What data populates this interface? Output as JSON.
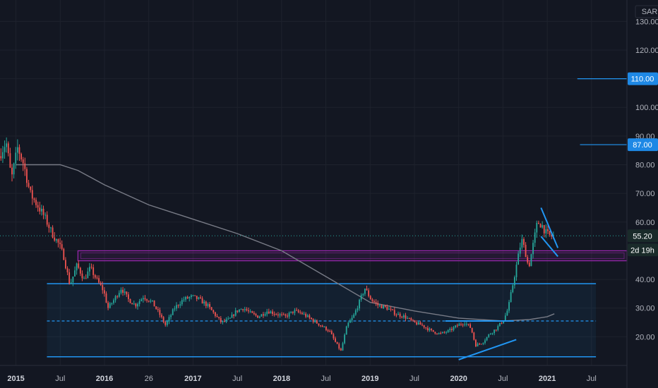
{
  "chart_data": {
    "type": "candlestick",
    "currency": "SAR",
    "y_axis": {
      "ticks": [
        20,
        30,
        40,
        50,
        60,
        70,
        80,
        90,
        100,
        110,
        120,
        130
      ],
      "tick_labels": [
        "20.00",
        "30.00",
        "40.00",
        "50.00",
        "60.00",
        "70.00",
        "80.00",
        "90.00",
        "100.00",
        "110.00",
        "120.00",
        "130.00"
      ],
      "ylim": [
        10,
        135
      ]
    },
    "x_axis": {
      "ticks": [
        {
          "label": "2015",
          "t": 2015.0,
          "bold": true
        },
        {
          "label": "Jul",
          "t": 2015.5,
          "bold": false
        },
        {
          "label": "2016",
          "t": 2016.0,
          "bold": true
        },
        {
          "label": "26",
          "t": 2016.5,
          "bold": false
        },
        {
          "label": "2017",
          "t": 2017.0,
          "bold": true
        },
        {
          "label": "Jul",
          "t": 2017.5,
          "bold": false
        },
        {
          "label": "2018",
          "t": 2018.0,
          "bold": true
        },
        {
          "label": "Jul",
          "t": 2018.5,
          "bold": false
        },
        {
          "label": "2019",
          "t": 2019.0,
          "bold": true
        },
        {
          "label": "Jul",
          "t": 2019.5,
          "bold": false
        },
        {
          "label": "2020",
          "t": 2020.0,
          "bold": true
        },
        {
          "label": "Jul",
          "t": 2020.5,
          "bold": false
        },
        {
          "label": "2021",
          "t": 2021.0,
          "bold": true
        },
        {
          "label": "Jul",
          "t": 2021.5,
          "bold": false
        }
      ],
      "xlim": [
        2014.82,
        2021.9
      ]
    },
    "price_path": [
      [
        2014.82,
        83
      ],
      [
        2014.9,
        88
      ],
      [
        2014.96,
        75
      ],
      [
        2015.03,
        86
      ],
      [
        2015.1,
        80
      ],
      [
        2015.17,
        70
      ],
      [
        2015.25,
        66
      ],
      [
        2015.33,
        62
      ],
      [
        2015.42,
        56
      ],
      [
        2015.5,
        52
      ],
      [
        2015.55,
        48
      ],
      [
        2015.62,
        38
      ],
      [
        2015.7,
        45
      ],
      [
        2015.78,
        40
      ],
      [
        2015.85,
        44
      ],
      [
        2015.92,
        40
      ],
      [
        2016.0,
        36
      ],
      [
        2016.05,
        30
      ],
      [
        2016.12,
        33
      ],
      [
        2016.2,
        37
      ],
      [
        2016.28,
        33
      ],
      [
        2016.36,
        31
      ],
      [
        2016.45,
        34
      ],
      [
        2016.55,
        32
      ],
      [
        2016.63,
        28
      ],
      [
        2016.7,
        24
      ],
      [
        2016.8,
        30
      ],
      [
        2016.9,
        33
      ],
      [
        2017.0,
        34
      ],
      [
        2017.08,
        33
      ],
      [
        2017.17,
        31
      ],
      [
        2017.25,
        28
      ],
      [
        2017.33,
        25
      ],
      [
        2017.42,
        26
      ],
      [
        2017.5,
        29
      ],
      [
        2017.58,
        30
      ],
      [
        2017.67,
        28
      ],
      [
        2017.75,
        27
      ],
      [
        2017.85,
        29
      ],
      [
        2017.95,
        28
      ],
      [
        2018.05,
        27
      ],
      [
        2018.15,
        29
      ],
      [
        2018.25,
        28
      ],
      [
        2018.35,
        26
      ],
      [
        2018.45,
        24
      ],
      [
        2018.55,
        22
      ],
      [
        2018.62,
        18
      ],
      [
        2018.68,
        15
      ],
      [
        2018.75,
        24
      ],
      [
        2018.82,
        27
      ],
      [
        2018.9,
        33
      ],
      [
        2018.95,
        37
      ],
      [
        2019.02,
        33
      ],
      [
        2019.1,
        31
      ],
      [
        2019.2,
        30
      ],
      [
        2019.3,
        28
      ],
      [
        2019.4,
        27
      ],
      [
        2019.5,
        25
      ],
      [
        2019.6,
        24
      ],
      [
        2019.7,
        22
      ],
      [
        2019.8,
        21
      ],
      [
        2019.9,
        22
      ],
      [
        2020.0,
        24
      ],
      [
        2020.08,
        25
      ],
      [
        2020.15,
        23
      ],
      [
        2020.2,
        17
      ],
      [
        2020.28,
        18
      ],
      [
        2020.36,
        21
      ],
      [
        2020.44,
        23
      ],
      [
        2020.52,
        26
      ],
      [
        2020.57,
        30
      ],
      [
        2020.62,
        38
      ],
      [
        2020.67,
        46
      ],
      [
        2020.72,
        54
      ],
      [
        2020.76,
        50
      ],
      [
        2020.8,
        44
      ],
      [
        2020.85,
        52
      ],
      [
        2020.9,
        60
      ],
      [
        2020.95,
        59
      ],
      [
        2021.0,
        56
      ],
      [
        2021.05,
        55
      ],
      [
        2021.08,
        55.2
      ]
    ],
    "moving_average": [
      [
        2015.0,
        80
      ],
      [
        2015.5,
        80
      ],
      [
        2015.7,
        78
      ],
      [
        2016.0,
        73
      ],
      [
        2016.5,
        66
      ],
      [
        2017.0,
        61
      ],
      [
        2017.5,
        56
      ],
      [
        2018.0,
        50
      ],
      [
        2018.5,
        41
      ],
      [
        2019.0,
        32
      ],
      [
        2019.5,
        29
      ],
      [
        2020.0,
        26.5
      ],
      [
        2020.5,
        25.5
      ],
      [
        2020.8,
        26
      ],
      [
        2021.0,
        27
      ],
      [
        2021.08,
        28
      ]
    ],
    "annotations": {
      "range_box": {
        "x0": 2015.35,
        "x1": 2021.55,
        "y0": 13,
        "y1": 38.5
      },
      "range_midline": 25.5,
      "supply_box": {
        "x0": 2015.7,
        "x1": 2021.9,
        "y0": 46.5,
        "y1": 50
      },
      "level_lines": [
        {
          "x0": 2021.34,
          "value": 110,
          "label": "110.00"
        },
        {
          "x0": 2021.37,
          "value": 87,
          "label": "87.00"
        }
      ],
      "trend_lines": [
        {
          "x0": 2020.0,
          "y0": 12,
          "x1": 2020.65,
          "y1": 19
        },
        {
          "x0": 2019.85,
          "y0": 25.5,
          "x1": 2020.62,
          "y1": 25.5
        },
        {
          "x0": 2020.93,
          "y0": 65,
          "x1": 2021.12,
          "y1": 51
        },
        {
          "x0": 2020.93,
          "y0": 55,
          "x1": 2021.12,
          "y1": 48
        }
      ]
    },
    "current_price": {
      "value": 55.2,
      "label": "55.20"
    },
    "countdown": {
      "label": "2d 19h"
    },
    "colors": {
      "background": "#131722",
      "up": "#26a69a",
      "down": "#ef5350",
      "ma": "#787b86",
      "level_blue": "#2196f3",
      "box_purple": "#9c27b0",
      "axis_text": "#b2b5be",
      "price_label": "#1e88e5"
    }
  }
}
